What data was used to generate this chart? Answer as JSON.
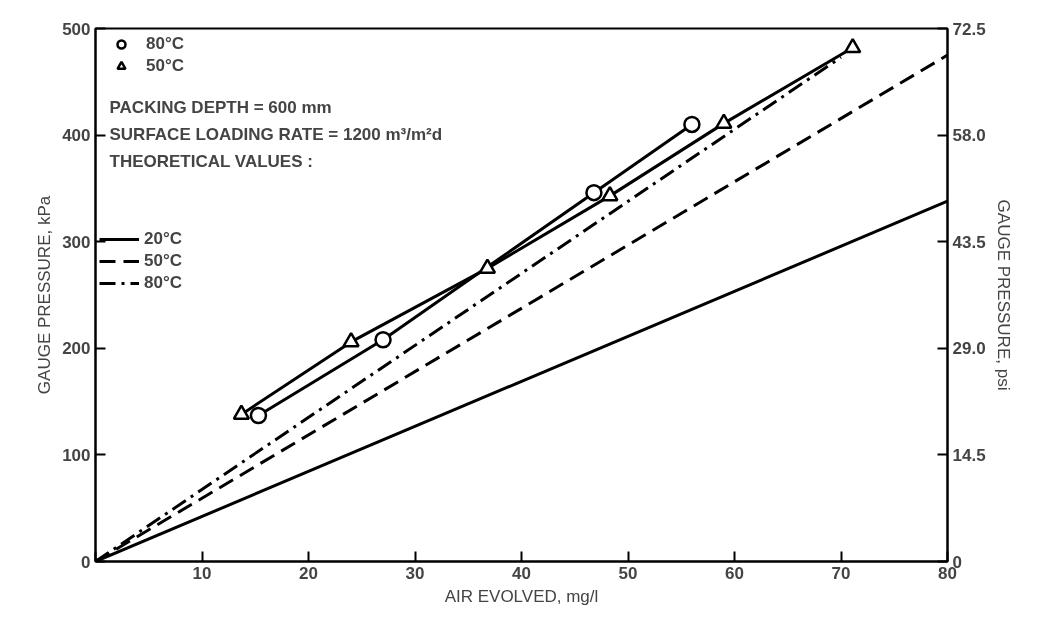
{
  "chart_data": {
    "type": "line",
    "xlabel": "AIR EVOLVED, mg/l",
    "ylabel": "GAUGE PRESSURE, kPa",
    "y2label": "GAUGE PRESSURE, psi",
    "xlim": [
      0,
      80
    ],
    "xticks": [
      {
        "value": 0,
        "label": null
      },
      10,
      20,
      30,
      40,
      50,
      60,
      70,
      80
    ],
    "ylim": [
      0,
      500
    ],
    "yticks": [
      0,
      100,
      200,
      300,
      400,
      500
    ],
    "y2lim": [
      0,
      72.5
    ],
    "y2ticks": [
      0,
      14.5,
      {
        "value": 29,
        "label": "29.0"
      },
      43.5,
      {
        "value": 58,
        "label": "58.0"
      },
      72.5
    ],
    "grid": false,
    "legend": "top left",
    "annotations": [
      "PACKING DEPTH = 600 mm",
      "SURFACE LOADING RATE = 1200 m³/m²d",
      "THEORETICAL VALUES :"
    ],
    "series": [
      {
        "name": "80°C",
        "color": "#000000",
        "marker": "circle",
        "line_style": "solid",
        "x": [
          15.3,
          27.0,
          46.8,
          56.0
        ],
        "values": [
          137,
          208,
          346,
          410
        ]
      },
      {
        "name": "50°C",
        "color": "#000000",
        "marker": "triangle",
        "line_style": "solid",
        "x": [
          13.7,
          24.0,
          36.8,
          48.3,
          59.0,
          71.1
        ],
        "values": [
          138,
          206,
          275,
          343,
          411,
          482
        ]
      },
      {
        "name": "20°C",
        "color": "#000000",
        "marker": "none",
        "line_style": "solid",
        "x": [
          0,
          80
        ],
        "values": [
          0,
          338
        ]
      },
      {
        "name": "50°C",
        "color": "#000000",
        "marker": "none",
        "line_style": "dashed",
        "x": [
          0,
          80
        ],
        "values": [
          0,
          475
        ]
      },
      {
        "name": "80°C",
        "color": "#000000",
        "marker": "none",
        "line_style": "dashdot",
        "x": [
          0,
          70
        ],
        "values": [
          0,
          473
        ]
      }
    ]
  }
}
